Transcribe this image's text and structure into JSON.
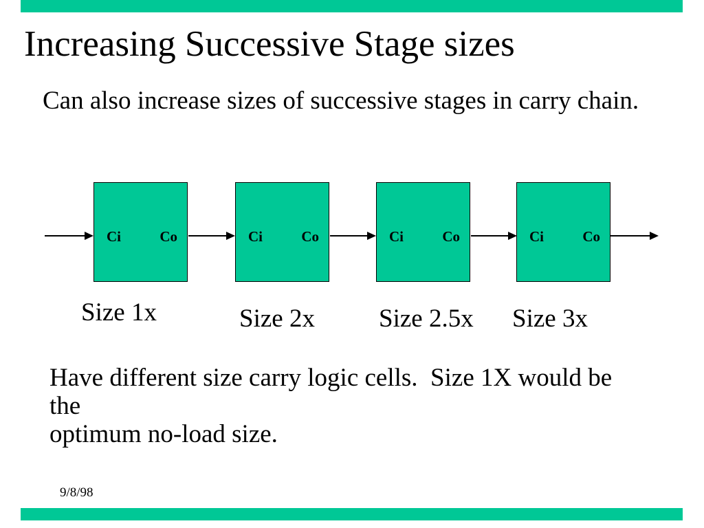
{
  "slide": {
    "title": "Increasing Successive Stage sizes",
    "subtitle": "Can also increase sizes of successive stages in carry chain.",
    "body_text": "Have different size carry logic cells.  Size 1X would be the\noptimum no-load size.",
    "date": "9/8/98",
    "accent_color": "#00C896",
    "text_color": "#000000",
    "background_color": "#FFFFFF"
  },
  "diagram": {
    "stages": [
      {
        "input_label": "Ci",
        "output_label": "Co",
        "size_label": "Size 1x"
      },
      {
        "input_label": "Ci",
        "output_label": "Co",
        "size_label": "Size 2x"
      },
      {
        "input_label": "Ci",
        "output_label": "Co",
        "size_label": "Size 2.5x"
      },
      {
        "input_label": "Ci",
        "output_label": "Co",
        "size_label": "Size 3x"
      }
    ]
  }
}
